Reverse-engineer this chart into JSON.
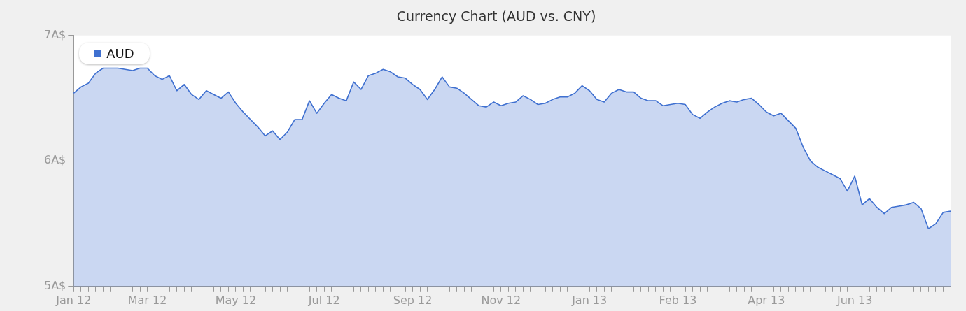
{
  "chart_data": {
    "type": "area",
    "title": "Currency Chart (AUD vs. CNY)",
    "categories": [
      "Jan 12",
      null,
      null,
      null,
      null,
      null,
      null,
      null,
      null,
      null,
      "Mar 12",
      null,
      null,
      null,
      null,
      null,
      null,
      null,
      null,
      null,
      null,
      null,
      "May 12",
      null,
      null,
      null,
      null,
      null,
      null,
      null,
      null,
      null,
      null,
      null,
      "Jul 12",
      null,
      null,
      null,
      null,
      null,
      null,
      null,
      null,
      null,
      null,
      null,
      "Sep 12",
      null,
      null,
      null,
      null,
      null,
      null,
      null,
      null,
      null,
      null,
      null,
      "Nov 12",
      null,
      null,
      null,
      null,
      null,
      null,
      null,
      null,
      null,
      null,
      null,
      "Jan 13",
      null,
      null,
      null,
      null,
      null,
      null,
      null,
      null,
      null,
      null,
      null,
      "Feb 13",
      null,
      null,
      null,
      null,
      null,
      null,
      null,
      null,
      null,
      null,
      null,
      "Apr 13",
      null,
      null,
      null,
      null,
      null,
      null,
      null,
      null,
      null,
      null,
      null,
      "Jun 13",
      null,
      null,
      null,
      null,
      null,
      null,
      null,
      null,
      null,
      null,
      null,
      null,
      null
    ],
    "series": [
      {
        "name": "AUD",
        "color": "#3f70d0",
        "values": [
          6.54,
          6.59,
          6.62,
          6.7,
          6.74,
          6.74,
          6.74,
          6.73,
          6.72,
          6.74,
          6.74,
          6.68,
          6.65,
          6.68,
          6.56,
          6.61,
          6.53,
          6.49,
          6.56,
          6.53,
          6.5,
          6.55,
          6.46,
          6.39,
          6.33,
          6.27,
          6.2,
          6.24,
          6.17,
          6.23,
          6.33,
          6.33,
          6.48,
          6.38,
          6.46,
          6.53,
          6.5,
          6.48,
          6.63,
          6.57,
          6.68,
          6.7,
          6.73,
          6.71,
          6.67,
          6.66,
          6.61,
          6.57,
          6.49,
          6.57,
          6.67,
          6.59,
          6.58,
          6.54,
          6.49,
          6.44,
          6.43,
          6.47,
          6.44,
          6.46,
          6.47,
          6.52,
          6.49,
          6.45,
          6.46,
          6.49,
          6.51,
          6.51,
          6.54,
          6.6,
          6.56,
          6.49,
          6.47,
          6.54,
          6.57,
          6.55,
          6.55,
          6.5,
          6.48,
          6.48,
          6.44,
          6.45,
          6.46,
          6.45,
          6.37,
          6.34,
          6.39,
          6.43,
          6.46,
          6.48,
          6.47,
          6.49,
          6.5,
          6.45,
          6.39,
          6.36,
          6.38,
          6.32,
          6.26,
          6.11,
          6.0,
          5.95,
          5.92,
          5.89,
          5.86,
          5.76,
          5.88,
          5.65,
          5.7,
          5.63,
          5.58,
          5.63,
          5.64,
          5.65,
          5.67,
          5.62,
          5.46,
          5.5,
          5.59,
          5.6
        ]
      }
    ],
    "ylim": [
      5,
      7
    ],
    "yticks": [
      {
        "value": 7,
        "label": "7A$"
      },
      {
        "value": 6,
        "label": "6A$"
      },
      {
        "value": 5,
        "label": "5A$"
      }
    ],
    "grid": false,
    "legend": "top left",
    "marker": "none",
    "line_style": "solid"
  }
}
